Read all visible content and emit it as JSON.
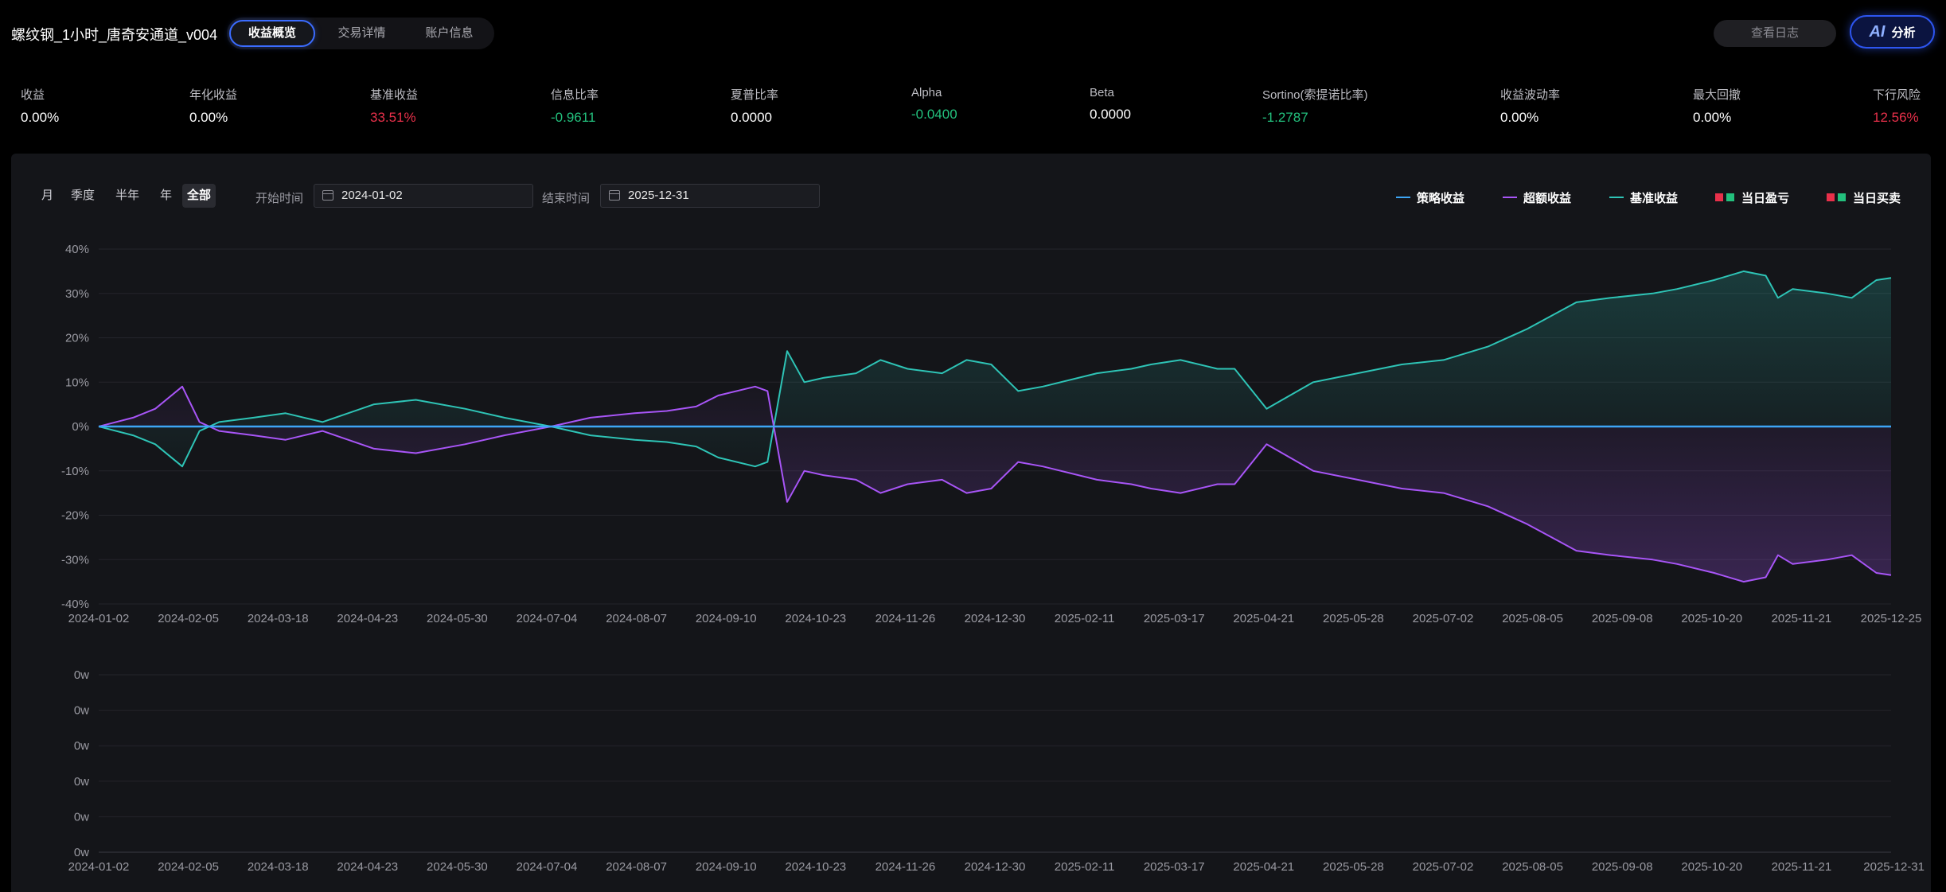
{
  "header": {
    "title": "螺纹钢_1小时_唐奇安通道_v004",
    "tabs": [
      {
        "label": "收益概览",
        "active": true
      },
      {
        "label": "交易详情",
        "active": false
      },
      {
        "label": "账户信息",
        "active": false
      }
    ],
    "log_button": "查看日志",
    "ai_button": {
      "mark": "AI",
      "label": "分析"
    }
  },
  "metrics": [
    {
      "label": "收益",
      "value": "0.00%",
      "tone": "neutral"
    },
    {
      "label": "年化收益",
      "value": "0.00%",
      "tone": "neutral"
    },
    {
      "label": "基准收益",
      "value": "33.51%",
      "tone": "red"
    },
    {
      "label": "信息比率",
      "value": "-0.9611",
      "tone": "green"
    },
    {
      "label": "夏普比率",
      "value": "0.0000",
      "tone": "neutral"
    },
    {
      "label": "Alpha",
      "value": "-0.0400",
      "tone": "green"
    },
    {
      "label": "Beta",
      "value": "0.0000",
      "tone": "neutral"
    },
    {
      "label": "Sortino(索提诺比率)",
      "value": "-1.2787",
      "tone": "green"
    },
    {
      "label": "收益波动率",
      "value": "0.00%",
      "tone": "neutral"
    },
    {
      "label": "最大回撤",
      "value": "0.00%",
      "tone": "neutral"
    },
    {
      "label": "下行风险",
      "value": "12.56%",
      "tone": "red"
    }
  ],
  "controls": {
    "periods": [
      {
        "label": "月",
        "active": false
      },
      {
        "label": "季度",
        "active": false
      },
      {
        "label": "半年",
        "active": false
      },
      {
        "label": "年",
        "active": false
      },
      {
        "label": "全部",
        "active": true
      }
    ],
    "start_label": "开始时间",
    "start_value": "2024-01-02",
    "end_label": "结束时间",
    "end_value": "2025-12-31"
  },
  "legend": [
    {
      "label": "策略收益",
      "kind": "line",
      "colors": [
        "#3da5f4"
      ]
    },
    {
      "label": "超额收益",
      "kind": "line",
      "colors": [
        "#a855f7"
      ]
    },
    {
      "label": "基准收益",
      "kind": "line",
      "colors": [
        "#2ec4b6"
      ]
    },
    {
      "label": "当日盈亏",
      "kind": "squares",
      "colors": [
        "#e8304a",
        "#23c07d"
      ]
    },
    {
      "label": "当日买卖",
      "kind": "squares",
      "colors": [
        "#e8304a",
        "#23c07d"
      ]
    }
  ],
  "colors": {
    "strategy": "#3da5f4",
    "excess": "#a855f7",
    "benchmark": "#2ec4b6",
    "up": "#e8304a",
    "down": "#23c07d"
  },
  "chart_data": [
    {
      "type": "line",
      "ylim": [
        -40,
        40
      ],
      "y_ticks": [
        "40%",
        "30%",
        "20%",
        "10%",
        "0%",
        "-10%",
        "-20%",
        "-30%",
        "-40%"
      ],
      "x_ticks": [
        "2024-01-02",
        "2024-02-05",
        "2024-03-18",
        "2024-04-23",
        "2024-05-30",
        "2024-07-04",
        "2024-08-07",
        "2024-09-10",
        "2024-10-23",
        "2024-11-26",
        "2024-12-30",
        "2025-02-11",
        "2025-03-17",
        "2025-04-21",
        "2025-05-28",
        "2025-07-02",
        "2025-08-05",
        "2025-09-08",
        "2025-10-20",
        "2025-11-21",
        "2025-12-25"
      ],
      "series": [
        {
          "name": "基准收益",
          "color": "#2ec4b6",
          "area": true,
          "x": [
            "2024-01-02",
            "2024-01-16",
            "2024-01-25",
            "2024-02-05",
            "2024-02-12",
            "2024-02-20",
            "2024-03-05",
            "2024-03-18",
            "2024-04-02",
            "2024-04-23",
            "2024-05-10",
            "2024-05-30",
            "2024-06-15",
            "2024-07-04",
            "2024-07-20",
            "2024-08-07",
            "2024-08-20",
            "2024-09-01",
            "2024-09-10",
            "2024-09-25",
            "2024-09-30",
            "2024-10-08",
            "2024-10-15",
            "2024-10-23",
            "2024-11-05",
            "2024-11-15",
            "2024-11-26",
            "2024-12-10",
            "2024-12-20",
            "2024-12-30",
            "2025-01-10",
            "2025-01-20",
            "2025-02-11",
            "2025-02-25",
            "2025-03-05",
            "2025-03-17",
            "2025-04-01",
            "2025-04-08",
            "2025-04-21",
            "2025-05-10",
            "2025-05-28",
            "2025-06-15",
            "2025-07-02",
            "2025-07-20",
            "2025-08-05",
            "2025-08-15",
            "2025-08-25",
            "2025-09-08",
            "2025-09-25",
            "2025-10-05",
            "2025-10-20",
            "2025-11-01",
            "2025-11-10",
            "2025-11-15",
            "2025-11-21",
            "2025-12-05",
            "2025-12-15",
            "2025-12-25",
            "2025-12-31"
          ],
          "y": [
            0,
            -2,
            -4,
            -9,
            -1,
            1,
            2,
            3,
            1,
            5,
            6,
            4,
            2,
            0,
            -2,
            -3,
            -3.5,
            -4.5,
            -7,
            -9,
            -8,
            17,
            10,
            11,
            12,
            15,
            13,
            12,
            15,
            14,
            8,
            9,
            12,
            13,
            14,
            15,
            13,
            13,
            4,
            10,
            12,
            14,
            15,
            18,
            22,
            25,
            28,
            29,
            30,
            31,
            33,
            35,
            34,
            29,
            31,
            30,
            29,
            33,
            33.5
          ]
        },
        {
          "name": "超额收益",
          "color": "#a855f7",
          "area": true,
          "x": [
            "2024-01-02",
            "2024-01-16",
            "2024-01-25",
            "2024-02-05",
            "2024-02-12",
            "2024-02-20",
            "2024-03-05",
            "2024-03-18",
            "2024-04-02",
            "2024-04-23",
            "2024-05-10",
            "2024-05-30",
            "2024-06-15",
            "2024-07-04",
            "2024-07-20",
            "2024-08-07",
            "2024-08-20",
            "2024-09-01",
            "2024-09-10",
            "2024-09-25",
            "2024-09-30",
            "2024-10-08",
            "2024-10-15",
            "2024-10-23",
            "2024-11-05",
            "2024-11-15",
            "2024-11-26",
            "2024-12-10",
            "2024-12-20",
            "2024-12-30",
            "2025-01-10",
            "2025-01-20",
            "2025-02-11",
            "2025-02-25",
            "2025-03-05",
            "2025-03-17",
            "2025-04-01",
            "2025-04-08",
            "2025-04-21",
            "2025-05-10",
            "2025-05-28",
            "2025-06-15",
            "2025-07-02",
            "2025-07-20",
            "2025-08-05",
            "2025-08-15",
            "2025-08-25",
            "2025-09-08",
            "2025-09-25",
            "2025-10-05",
            "2025-10-20",
            "2025-11-01",
            "2025-11-10",
            "2025-11-15",
            "2025-11-21",
            "2025-12-05",
            "2025-12-15",
            "2025-12-25",
            "2025-12-31"
          ],
          "y": [
            0,
            2,
            4,
            9,
            1,
            -1,
            -2,
            -3,
            -1,
            -5,
            -6,
            -4,
            -2,
            0,
            2,
            3,
            3.5,
            4.5,
            7,
            9,
            8,
            -17,
            -10,
            -11,
            -12,
            -15,
            -13,
            -12,
            -15,
            -14,
            -8,
            -9,
            -12,
            -13,
            -14,
            -15,
            -13,
            -13,
            -4,
            -10,
            -12,
            -14,
            -15,
            -18,
            -22,
            -25,
            -28,
            -29,
            -30,
            -31,
            -33,
            -35,
            -34,
            -29,
            -31,
            -30,
            -29,
            -33,
            -33.5
          ]
        },
        {
          "name": "策略收益",
          "color": "#3da5f4",
          "area": false,
          "x": [
            "2024-01-02",
            "2025-12-31"
          ],
          "y": [
            0,
            0
          ]
        }
      ]
    },
    {
      "type": "bar",
      "y_ticks": [
        "0w",
        "0w",
        "0w",
        "0w",
        "0w",
        "0w"
      ],
      "x_ticks": [
        "2024-01-02",
        "2024-02-05",
        "2024-03-18",
        "2024-04-23",
        "2024-05-30",
        "2024-07-04",
        "2024-08-07",
        "2024-09-10",
        "2024-10-23",
        "2024-11-26",
        "2024-12-30",
        "2025-02-11",
        "2025-03-17",
        "2025-04-21",
        "2025-05-28",
        "2025-07-02",
        "2025-08-05",
        "2025-09-08",
        "2025-10-20",
        "2025-11-21",
        "2025-12-31"
      ],
      "values": []
    }
  ]
}
